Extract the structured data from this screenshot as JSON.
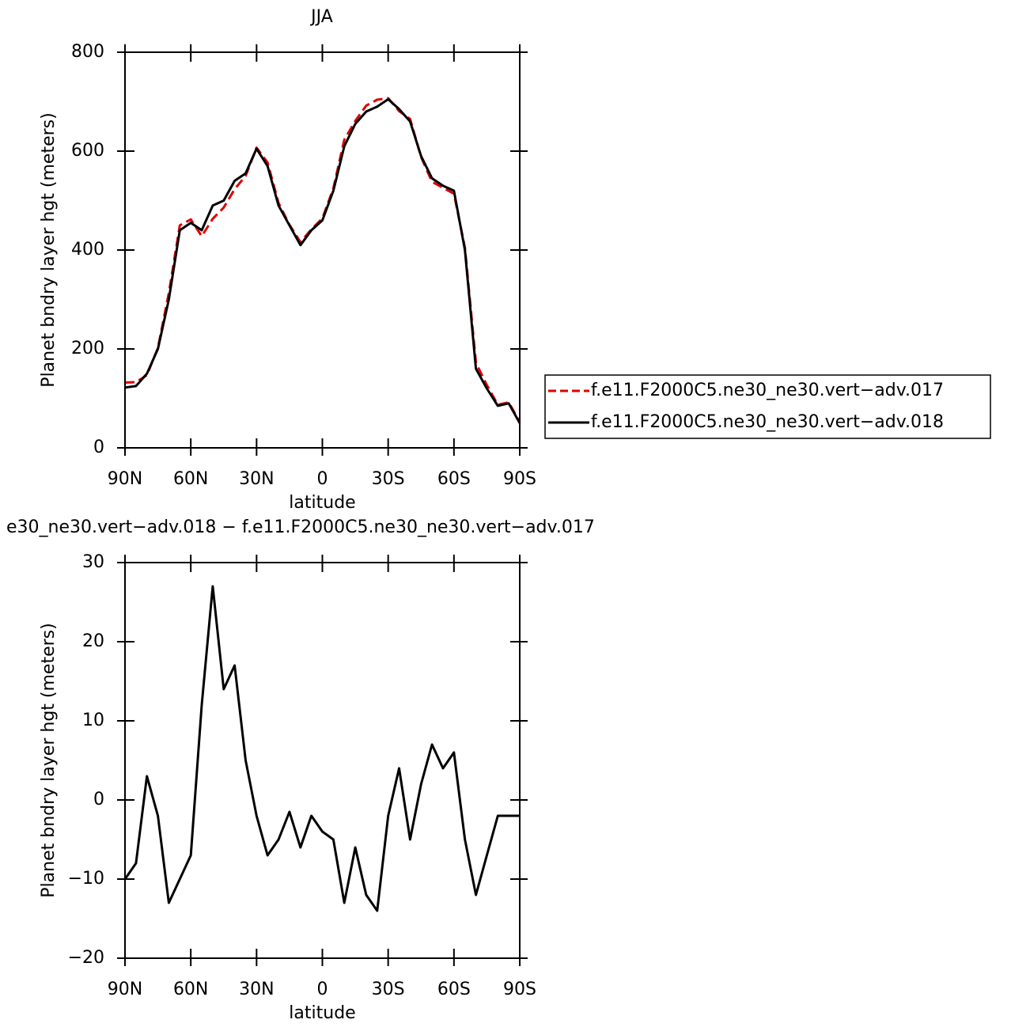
{
  "chart_data": [
    {
      "type": "line",
      "title": "JJA",
      "xlabel": "latitude",
      "ylabel": "Planet bndry layer hgt (meters)",
      "x": [
        90,
        85,
        80,
        75,
        70,
        65,
        60,
        55,
        50,
        45,
        40,
        35,
        30,
        25,
        20,
        15,
        10,
        5,
        0,
        -5,
        -10,
        -15,
        -20,
        -25,
        -30,
        -35,
        -40,
        -45,
        -50,
        -55,
        -60,
        -65,
        -70,
        -75,
        -80,
        -85,
        -90
      ],
      "xlim": [
        90,
        -90
      ],
      "xticks": [
        {
          "value": 90,
          "label": "90N"
        },
        {
          "value": 60,
          "label": "60N"
        },
        {
          "value": 30,
          "label": "30N"
        },
        0,
        {
          "value": -30,
          "label": "30S"
        },
        {
          "value": -60,
          "label": "60S"
        },
        {
          "value": -90,
          "label": "90S"
        }
      ],
      "ylim": [
        0,
        800
      ],
      "yticks": [
        0,
        200,
        400,
        600,
        800
      ],
      "legend": "right",
      "series": [
        {
          "name": "f.e11.F2000C5.ne30_ne30.vert−adv.017",
          "color": "#e00000",
          "dash": true,
          "values": [
            132,
            133,
            147,
            202,
            313,
            450,
            462,
            428,
            463,
            486,
            523,
            550,
            607,
            577,
            495,
            451,
            416,
            442,
            464,
            525,
            623,
            661,
            692,
            704,
            707,
            681,
            665,
            588,
            538,
            526,
            514,
            405,
            172,
            127,
            87,
            92,
            52
          ]
        },
        {
          "name": "f.e11.F2000C5.ne30_ne30.vert−adv.018",
          "color": "#000000",
          "dash": false,
          "values": [
            122,
            125,
            150,
            200,
            300,
            440,
            455,
            440,
            490,
            500,
            540,
            555,
            605,
            570,
            490,
            450,
            410,
            440,
            460,
            520,
            610,
            655,
            680,
            690,
            705,
            685,
            660,
            590,
            545,
            530,
            520,
            400,
            160,
            120,
            85,
            90,
            50
          ]
        }
      ]
    },
    {
      "type": "line",
      "title": "e30_ne30.vert−adv.018 − f.e11.F2000C5.ne30_ne30.vert−adv.017",
      "xlabel": "latitude",
      "ylabel": "Planet bndry layer hgt (meters)",
      "x": [
        90,
        85,
        80,
        75,
        70,
        65,
        60,
        55,
        50,
        45,
        40,
        35,
        30,
        25,
        20,
        15,
        10,
        5,
        0,
        -5,
        -10,
        -15,
        -20,
        -25,
        -30,
        -35,
        -40,
        -45,
        -50,
        -55,
        -60,
        -65,
        -70,
        -75,
        -80,
        -85,
        -90
      ],
      "xlim": [
        90,
        -90
      ],
      "xticks": [
        {
          "value": 90,
          "label": "90N"
        },
        {
          "value": 60,
          "label": "60N"
        },
        {
          "value": 30,
          "label": "30N"
        },
        0,
        {
          "value": -30,
          "label": "30S"
        },
        {
          "value": -60,
          "label": "60S"
        },
        {
          "value": -90,
          "label": "90S"
        }
      ],
      "ylim": [
        -20,
        30
      ],
      "yticks": [
        {
          "value": -20,
          "label": "−20"
        },
        {
          "value": -10,
          "label": "−10"
        },
        0,
        10,
        20,
        30
      ],
      "series": [
        {
          "color": "#000000",
          "dash": false,
          "values": [
            -10,
            -8,
            3,
            -2,
            -13,
            -10,
            -7,
            12,
            27,
            14,
            17,
            5,
            -2,
            -7,
            -5,
            -1.5,
            -6,
            -2,
            -4,
            -5,
            -13,
            -6,
            -12,
            -14,
            -2,
            4,
            -5,
            2,
            7,
            4,
            6,
            -5,
            -12,
            -7,
            -2,
            -2,
            -2
          ]
        }
      ]
    }
  ]
}
